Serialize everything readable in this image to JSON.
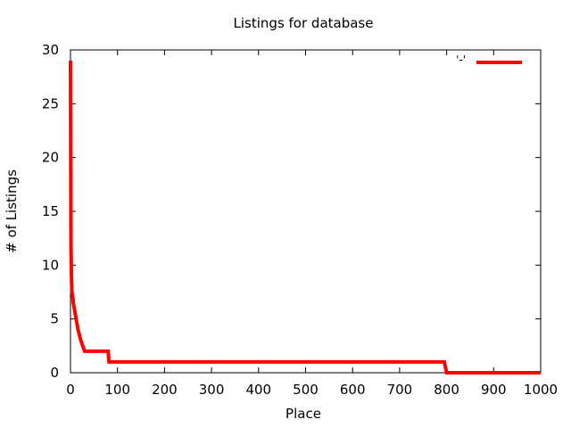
{
  "chart_data": {
    "type": "line",
    "title": "Listings for database",
    "xlabel": "Place",
    "ylabel": "# of Listings",
    "xlim": [
      0,
      1000
    ],
    "ylim": [
      0,
      30
    ],
    "xticks": [
      0,
      100,
      200,
      300,
      400,
      500,
      600,
      700,
      800,
      900,
      1000
    ],
    "yticks": [
      0,
      5,
      10,
      15,
      20,
      25,
      30
    ],
    "grid": false,
    "legend_position": "top-right",
    "series": [
      {
        "name": "'-'",
        "color": "#ff0000",
        "step": true,
        "points": [
          [
            0,
            29
          ],
          [
            1,
            12
          ],
          [
            2,
            9
          ],
          [
            3,
            7.5
          ],
          [
            5,
            7
          ],
          [
            6,
            6.5
          ],
          [
            8,
            6
          ],
          [
            10,
            5.5
          ],
          [
            12,
            5
          ],
          [
            16,
            4
          ],
          [
            22,
            3
          ],
          [
            30,
            2
          ],
          [
            80,
            2
          ],
          [
            82,
            1
          ],
          [
            795,
            1
          ],
          [
            800,
            0
          ],
          [
            1000,
            0
          ]
        ]
      }
    ]
  }
}
